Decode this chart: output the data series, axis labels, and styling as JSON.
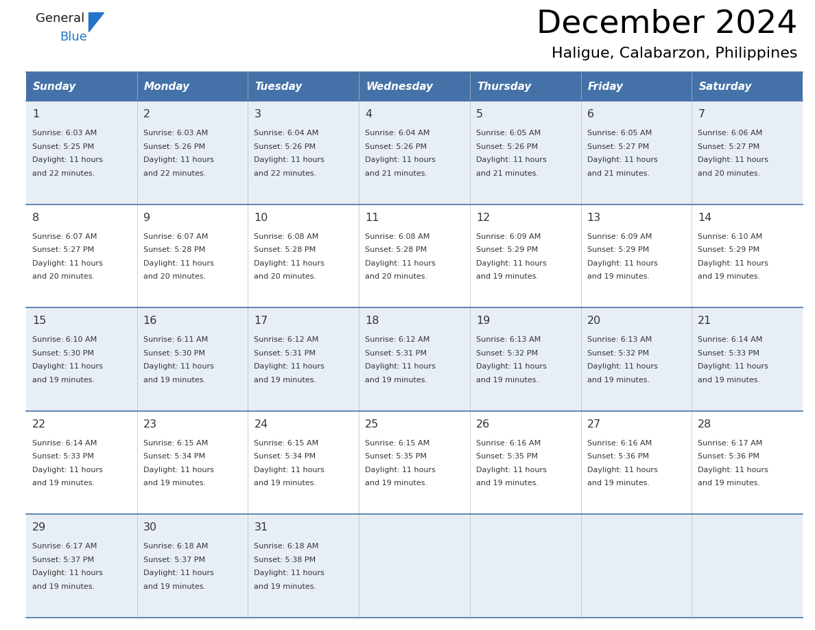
{
  "title": "December 2024",
  "subtitle": "Haligue, Calabarzon, Philippines",
  "header_bg": "#4472a8",
  "header_text": "#ffffff",
  "row_bg_odd": "#e8eef5",
  "row_bg_even": "#ffffff",
  "day_names": [
    "Sunday",
    "Monday",
    "Tuesday",
    "Wednesday",
    "Thursday",
    "Friday",
    "Saturday"
  ],
  "weeks": [
    [
      {
        "day": 1,
        "sunrise": "6:03 AM",
        "sunset": "5:25 PM",
        "daylight": "11 hours and 22 minutes."
      },
      {
        "day": 2,
        "sunrise": "6:03 AM",
        "sunset": "5:26 PM",
        "daylight": "11 hours and 22 minutes."
      },
      {
        "day": 3,
        "sunrise": "6:04 AM",
        "sunset": "5:26 PM",
        "daylight": "11 hours and 22 minutes."
      },
      {
        "day": 4,
        "sunrise": "6:04 AM",
        "sunset": "5:26 PM",
        "daylight": "11 hours and 21 minutes."
      },
      {
        "day": 5,
        "sunrise": "6:05 AM",
        "sunset": "5:26 PM",
        "daylight": "11 hours and 21 minutes."
      },
      {
        "day": 6,
        "sunrise": "6:05 AM",
        "sunset": "5:27 PM",
        "daylight": "11 hours and 21 minutes."
      },
      {
        "day": 7,
        "sunrise": "6:06 AM",
        "sunset": "5:27 PM",
        "daylight": "11 hours and 20 minutes."
      }
    ],
    [
      {
        "day": 8,
        "sunrise": "6:07 AM",
        "sunset": "5:27 PM",
        "daylight": "11 hours and 20 minutes."
      },
      {
        "day": 9,
        "sunrise": "6:07 AM",
        "sunset": "5:28 PM",
        "daylight": "11 hours and 20 minutes."
      },
      {
        "day": 10,
        "sunrise": "6:08 AM",
        "sunset": "5:28 PM",
        "daylight": "11 hours and 20 minutes."
      },
      {
        "day": 11,
        "sunrise": "6:08 AM",
        "sunset": "5:28 PM",
        "daylight": "11 hours and 20 minutes."
      },
      {
        "day": 12,
        "sunrise": "6:09 AM",
        "sunset": "5:29 PM",
        "daylight": "11 hours and 19 minutes."
      },
      {
        "day": 13,
        "sunrise": "6:09 AM",
        "sunset": "5:29 PM",
        "daylight": "11 hours and 19 minutes."
      },
      {
        "day": 14,
        "sunrise": "6:10 AM",
        "sunset": "5:29 PM",
        "daylight": "11 hours and 19 minutes."
      }
    ],
    [
      {
        "day": 15,
        "sunrise": "6:10 AM",
        "sunset": "5:30 PM",
        "daylight": "11 hours and 19 minutes."
      },
      {
        "day": 16,
        "sunrise": "6:11 AM",
        "sunset": "5:30 PM",
        "daylight": "11 hours and 19 minutes."
      },
      {
        "day": 17,
        "sunrise": "6:12 AM",
        "sunset": "5:31 PM",
        "daylight": "11 hours and 19 minutes."
      },
      {
        "day": 18,
        "sunrise": "6:12 AM",
        "sunset": "5:31 PM",
        "daylight": "11 hours and 19 minutes."
      },
      {
        "day": 19,
        "sunrise": "6:13 AM",
        "sunset": "5:32 PM",
        "daylight": "11 hours and 19 minutes."
      },
      {
        "day": 20,
        "sunrise": "6:13 AM",
        "sunset": "5:32 PM",
        "daylight": "11 hours and 19 minutes."
      },
      {
        "day": 21,
        "sunrise": "6:14 AM",
        "sunset": "5:33 PM",
        "daylight": "11 hours and 19 minutes."
      }
    ],
    [
      {
        "day": 22,
        "sunrise": "6:14 AM",
        "sunset": "5:33 PM",
        "daylight": "11 hours and 19 minutes."
      },
      {
        "day": 23,
        "sunrise": "6:15 AM",
        "sunset": "5:34 PM",
        "daylight": "11 hours and 19 minutes."
      },
      {
        "day": 24,
        "sunrise": "6:15 AM",
        "sunset": "5:34 PM",
        "daylight": "11 hours and 19 minutes."
      },
      {
        "day": 25,
        "sunrise": "6:15 AM",
        "sunset": "5:35 PM",
        "daylight": "11 hours and 19 minutes."
      },
      {
        "day": 26,
        "sunrise": "6:16 AM",
        "sunset": "5:35 PM",
        "daylight": "11 hours and 19 minutes."
      },
      {
        "day": 27,
        "sunrise": "6:16 AM",
        "sunset": "5:36 PM",
        "daylight": "11 hours and 19 minutes."
      },
      {
        "day": 28,
        "sunrise": "6:17 AM",
        "sunset": "5:36 PM",
        "daylight": "11 hours and 19 minutes."
      }
    ],
    [
      {
        "day": 29,
        "sunrise": "6:17 AM",
        "sunset": "5:37 PM",
        "daylight": "11 hours and 19 minutes."
      },
      {
        "day": 30,
        "sunrise": "6:18 AM",
        "sunset": "5:37 PM",
        "daylight": "11 hours and 19 minutes."
      },
      {
        "day": 31,
        "sunrise": "6:18 AM",
        "sunset": "5:38 PM",
        "daylight": "11 hours and 19 minutes."
      },
      null,
      null,
      null,
      null
    ]
  ],
  "border_color": "#4472a8",
  "text_color": "#333333",
  "logo_general_color": "#1a1a1a",
  "logo_blue_color": "#2176c7",
  "fig_width": 11.88,
  "fig_height": 9.18,
  "dpi": 100
}
